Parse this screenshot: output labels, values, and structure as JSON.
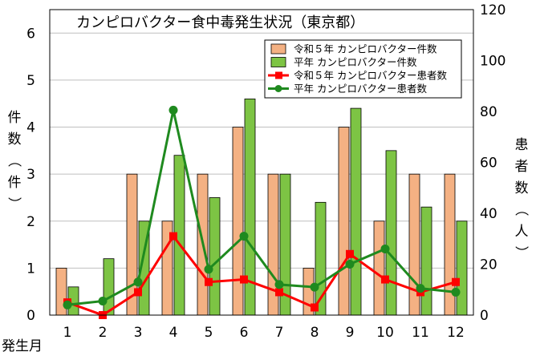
{
  "chart_data": {
    "type": "bar",
    "title": "カンピロバクター食中毒発生状況（東京都）",
    "xlabel": "発生月",
    "ylabel_left": "件数（件）",
    "ylabel_right": "患者数（人）",
    "categories": [
      "1",
      "2",
      "3",
      "4",
      "5",
      "6",
      "7",
      "8",
      "9",
      "10",
      "11",
      "12"
    ],
    "y_left": {
      "range": [
        0,
        6.5
      ],
      "ticks": [
        0,
        1,
        2,
        3,
        4,
        5,
        6
      ]
    },
    "y_right": {
      "range": [
        0,
        120
      ],
      "ticks": [
        0,
        20,
        40,
        60,
        80,
        100,
        120
      ]
    },
    "grid": true,
    "legend_position": "top-right",
    "bar_series": [
      {
        "name": "令和５年  カンピロバクター件数",
        "axis": "left",
        "color": "#F4B183",
        "values": [
          1,
          0,
          3,
          2,
          3,
          4,
          3,
          1,
          4,
          2,
          3,
          3
        ]
      },
      {
        "name": "平年  カンピロバクター件数",
        "axis": "left",
        "color": "#7DC444",
        "values": [
          0.6,
          1.2,
          2.0,
          3.4,
          2.5,
          4.6,
          3.0,
          2.4,
          4.4,
          3.5,
          2.3,
          2.0
        ]
      }
    ],
    "line_series": [
      {
        "name": "令和５年  カンピロバクター患者数",
        "axis": "right",
        "color": "#FF0000",
        "marker": "square",
        "values": [
          5,
          0,
          9,
          31,
          13,
          14,
          9,
          3,
          24,
          14,
          9,
          13
        ]
      },
      {
        "name": "平年  カンピロバクター患者数",
        "axis": "right",
        "color": "#1F8A1F",
        "marker": "circle",
        "values": [
          4,
          5.5,
          13,
          80.5,
          18,
          31,
          12,
          11,
          20,
          26,
          10.5,
          9
        ]
      }
    ]
  }
}
